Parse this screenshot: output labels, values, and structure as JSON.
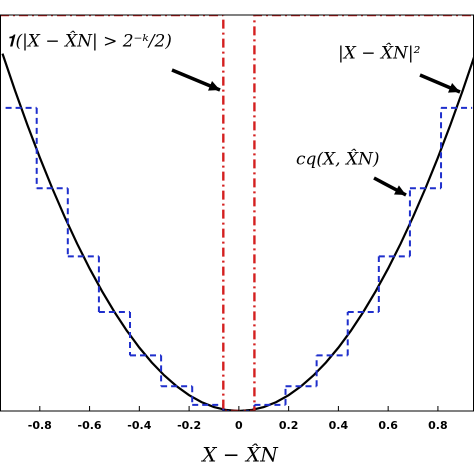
{
  "chart_data": {
    "type": "line",
    "xlabel": "X − X̂N",
    "xlim": [
      -0.96,
      0.945
    ],
    "ylim": [
      0,
      1
    ],
    "xticks": [
      -0.8,
      -0.6,
      -0.4,
      -0.2,
      0,
      0.2,
      0.4,
      0.6,
      0.8
    ],
    "annotations": [
      "𝟏(|X − X̂N| > 2⁻ᵏ/2)",
      "|X − X̂N|²",
      "cq(X, X̂N)"
    ],
    "series": [
      {
        "name": "|X − X̂N|²",
        "color": "#000000",
        "style": "solid",
        "x": [
          -0.95,
          -0.9,
          -0.85,
          -0.8,
          -0.75,
          -0.7,
          -0.65,
          -0.6,
          -0.55,
          -0.5,
          -0.45,
          -0.4,
          -0.35,
          -0.3,
          -0.25,
          -0.2,
          -0.15,
          -0.1,
          -0.05,
          0,
          0.05,
          0.1,
          0.15,
          0.2,
          0.25,
          0.3,
          0.35,
          0.4,
          0.45,
          0.5,
          0.55,
          0.6,
          0.65,
          0.7,
          0.75,
          0.8,
          0.85,
          0.9,
          0.95
        ],
        "values": [
          0.9025,
          0.81,
          0.7225,
          0.64,
          0.5625,
          0.49,
          0.4225,
          0.36,
          0.3025,
          0.25,
          0.2025,
          0.16,
          0.1225,
          0.09,
          0.0625,
          0.04,
          0.0225,
          0.01,
          0.0025,
          0,
          0.0025,
          0.01,
          0.0225,
          0.04,
          0.0625,
          0.09,
          0.1225,
          0.16,
          0.2025,
          0.25,
          0.3025,
          0.36,
          0.4225,
          0.49,
          0.5625,
          0.64,
          0.7225,
          0.81,
          0.9025
        ]
      },
      {
        "name": "cq(X, X̂N)",
        "color": "#1f2fcc",
        "style": "steps",
        "x": [
          -0.875,
          -0.75,
          -0.625,
          -0.5,
          -0.375,
          -0.25,
          -0.125,
          0,
          0.125,
          0.25,
          0.375,
          0.5,
          0.625,
          0.75,
          0.875
        ],
        "width": 0.125,
        "values": [
          0.765625,
          0.5625,
          0.390625,
          0.25,
          0.140625,
          0.0625,
          0.015625,
          0,
          0.015625,
          0.0625,
          0.140625,
          0.25,
          0.390625,
          0.5625,
          0.765625
        ]
      },
      {
        "name": "indicator",
        "color": "#d42020",
        "style": "dashdot",
        "x": [
          -0.96,
          -0.0625,
          -0.0625,
          0.0625,
          0.0625,
          0.945
        ],
        "values": [
          1,
          1,
          0,
          0,
          1,
          1
        ]
      }
    ]
  }
}
